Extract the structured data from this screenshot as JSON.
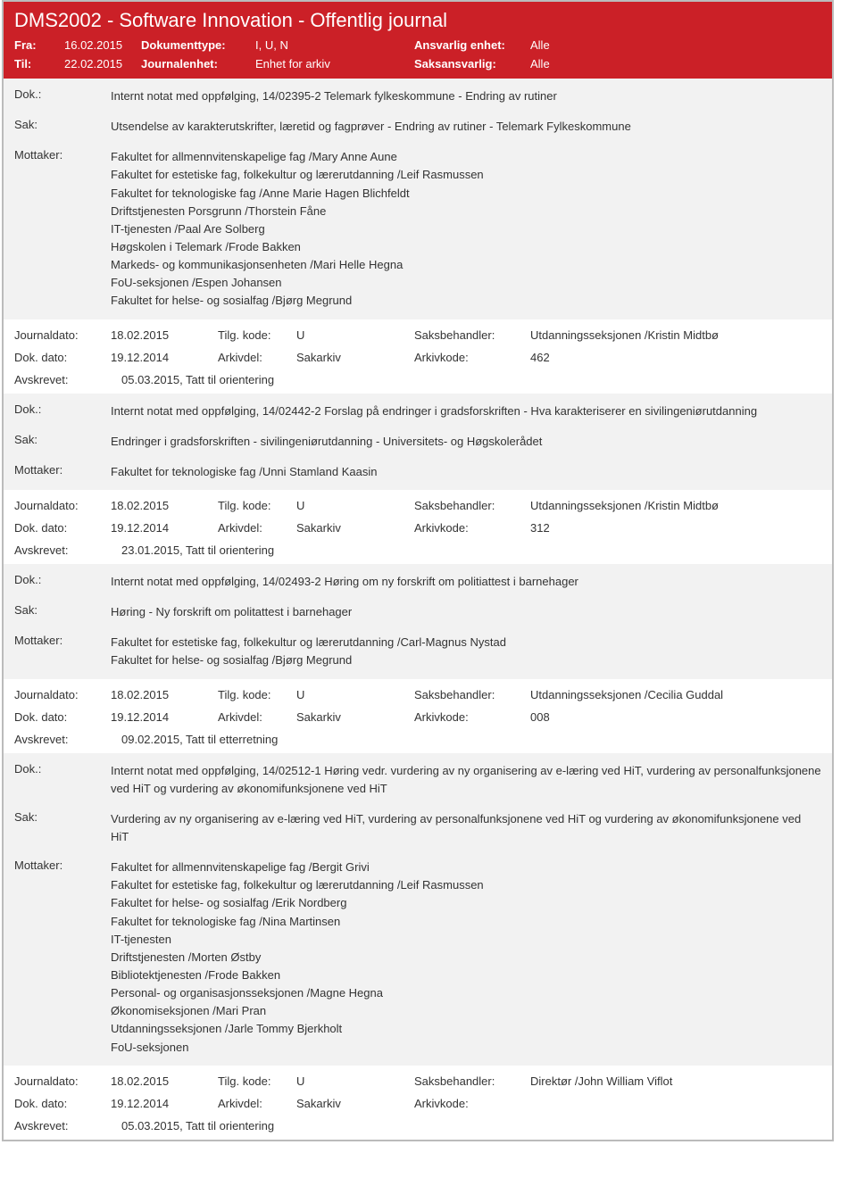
{
  "header": {
    "title": "DMS2002 - Software Innovation - Offentlig journal",
    "fra_label": "Fra:",
    "fra_value": "16.02.2015",
    "til_label": "Til:",
    "til_value": "22.02.2015",
    "doktype_label": "Dokumenttype:",
    "doktype_value": "I, U, N",
    "journalenhet_label": "Journalenhet:",
    "journalenhet_value": "Enhet for arkiv",
    "ansvarlig_label": "Ansvarlig enhet:",
    "ansvarlig_value": "Alle",
    "saksansvarlig_label": "Saksansvarlig:",
    "saksansvarlig_value": "Alle"
  },
  "labels": {
    "dok": "Dok.:",
    "sak": "Sak:",
    "mottaker": "Mottaker:",
    "journaldato": "Journaldato:",
    "tilgkode": "Tilg. kode:",
    "saksbehandler": "Saksbehandler:",
    "dokdato": "Dok. dato:",
    "arkivdel": "Arkivdel:",
    "arkivkode": "Arkivkode:",
    "avskrevet": "Avskrevet:"
  },
  "entries": [
    {
      "dok": "Internt notat med oppfølging, 14/02395-2 Telemark fylkeskommune - Endring av rutiner",
      "sak": "Utsendelse av karakterutskrifter, læretid og fagprøver - Endring av rutiner - Telemark Fylkeskommune",
      "mottaker": "Fakultet for allmennvitenskapelige fag /Mary Anne Aune\nFakultet for estetiske fag, folkekultur og lærerutdanning /Leif Rasmussen\nFakultet for teknologiske fag /Anne Marie Hagen Blichfeldt\nDriftstjenesten Porsgrunn /Thorstein Fåne\nIT-tjenesten /Paal Are Solberg\nHøgskolen i Telemark /Frode Bakken\nMarkeds- og kommunikasjonsenheten /Mari Helle Hegna\nFoU-seksjonen /Espen Johansen\nFakultet for helse- og sosialfag /Bjørg Megrund",
      "journaldato": "18.02.2015",
      "tilgkode": "U",
      "saksbehandler": "Utdanningsseksjonen /Kristin Midtbø",
      "dokdato": "19.12.2014",
      "arkivdel": "Sakarkiv",
      "arkivkode": "462",
      "avskrevet": "05.03.2015, Tatt til orientering"
    },
    {
      "dok": "Internt notat med oppfølging, 14/02442-2 Forslag på endringer i gradsforskriften - Hva karakteriserer en sivilingeniørutdanning",
      "sak": "Endringer i gradsforskriften - sivilingeniørutdanning - Universitets- og Høgskolerådet",
      "mottaker": "Fakultet for teknologiske fag /Unni Stamland Kaasin",
      "journaldato": "18.02.2015",
      "tilgkode": "U",
      "saksbehandler": "Utdanningsseksjonen /Kristin Midtbø",
      "dokdato": "19.12.2014",
      "arkivdel": "Sakarkiv",
      "arkivkode": "312",
      "avskrevet": "23.01.2015, Tatt til orientering"
    },
    {
      "dok": "Internt notat med oppfølging, 14/02493-2 Høring om ny forskrift om politiattest i barnehager",
      "sak": "Høring - Ny forskrift om politattest i barnehager",
      "mottaker": "Fakultet for estetiske fag, folkekultur og lærerutdanning /Carl-Magnus Nystad\nFakultet for helse- og sosialfag /Bjørg Megrund",
      "journaldato": "18.02.2015",
      "tilgkode": "U",
      "saksbehandler": "Utdanningsseksjonen /Cecilia Guddal",
      "dokdato": "19.12.2014",
      "arkivdel": "Sakarkiv",
      "arkivkode": "008",
      "avskrevet": "09.02.2015, Tatt til etterretning"
    },
    {
      "dok": "Internt notat med oppfølging, 14/02512-1 Høring vedr. vurdering av ny organisering av e-læring ved HiT, vurdering av personalfunksjonene ved HiT og vurdering av økonomifunksjonene ved HiT",
      "sak": "Vurdering av ny organisering av e-læring ved HiT, vurdering av personalfunksjonene ved HiT og vurdering av økonomifunksjonene ved HiT",
      "mottaker": "Fakultet for allmennvitenskapelige fag /Bergit Grivi\nFakultet for estetiske fag, folkekultur og lærerutdanning /Leif Rasmussen\nFakultet for helse- og sosialfag /Erik Nordberg\nFakultet for teknologiske fag /Nina Martinsen\nIT-tjenesten\nDriftstjenesten /Morten Østby\nBibliotektjenesten /Frode Bakken\nPersonal- og organisasjonsseksjonen /Magne Hegna\nØkonomiseksjonen /Mari Pran\nUtdanningsseksjonen /Jarle Tommy Bjerkholt\nFoU-seksjonen",
      "journaldato": "18.02.2015",
      "tilgkode": "U",
      "saksbehandler": "Direktør /John William Viflot",
      "dokdato": "19.12.2014",
      "arkivdel": "Sakarkiv",
      "arkivkode": "",
      "avskrevet": "05.03.2015, Tatt til orientering"
    }
  ]
}
